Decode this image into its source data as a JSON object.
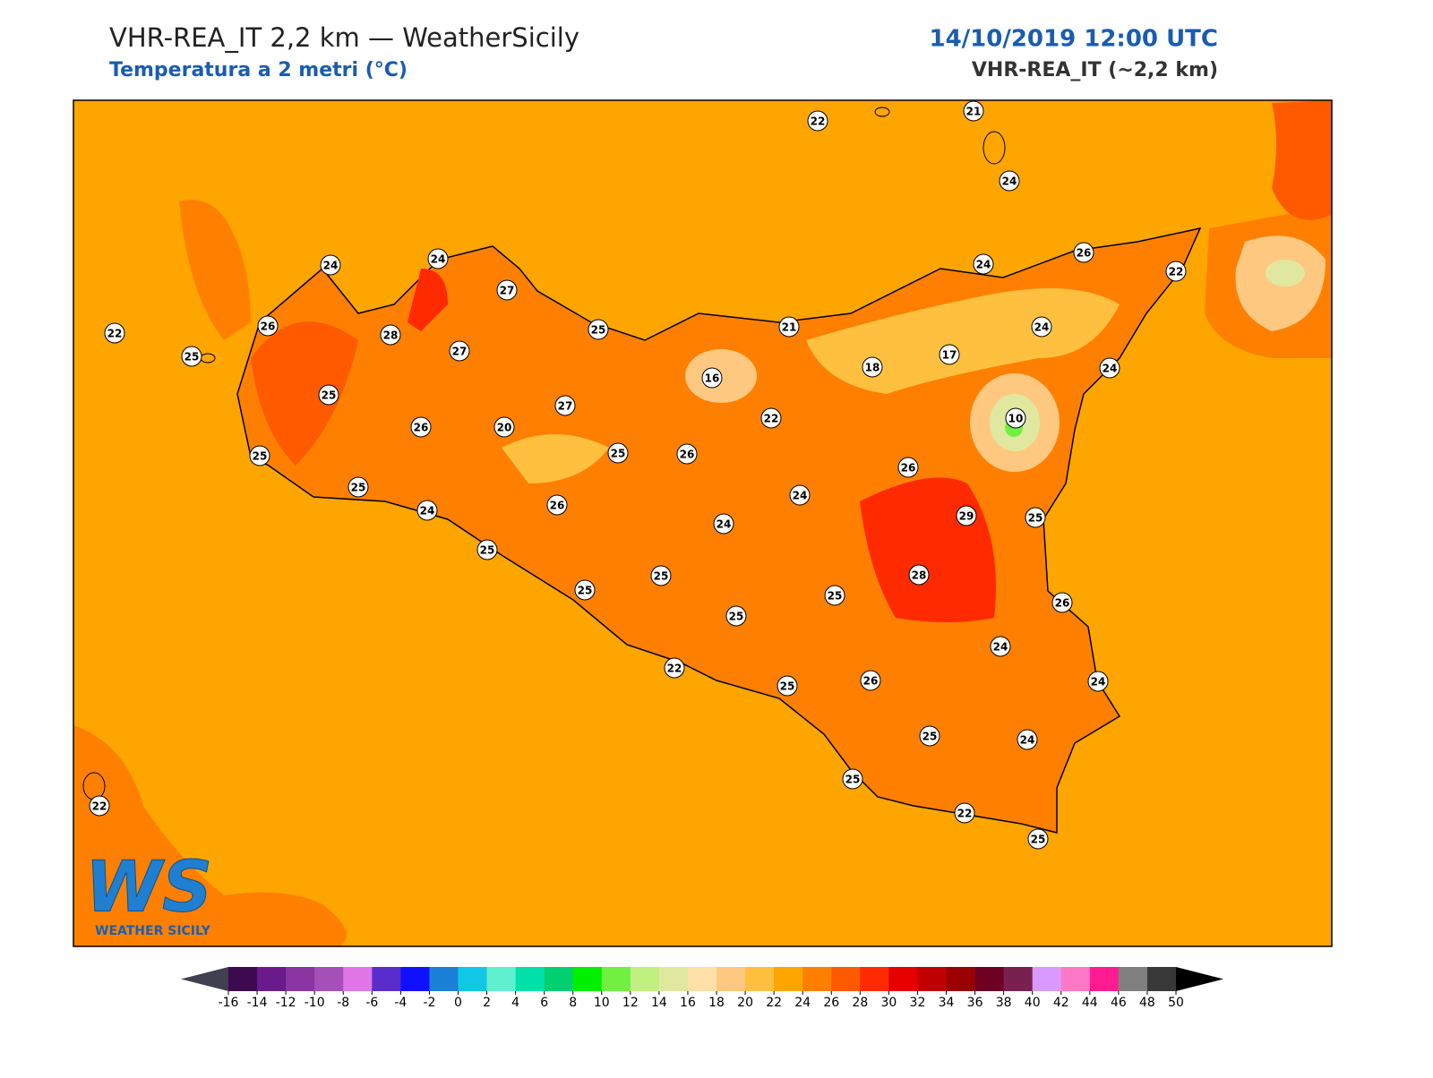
{
  "header": {
    "title": "VHR-REA_IT 2,2 km — WeatherSicily",
    "subtitle": "Temperatura a 2 metri (°C)",
    "datetime": "14/10/2019 12:00 UTC",
    "model": "VHR-REA_IT (~2,2 km)"
  },
  "stations": [
    22,
    21,
    24,
    24,
    24,
    27,
    26,
    28,
    22,
    25,
    25,
    27,
    16,
    21,
    25,
    27,
    26,
    20,
    22,
    18,
    17,
    24,
    26,
    22,
    24,
    24,
    10,
    25,
    25,
    25,
    26,
    26,
    24,
    24,
    26,
    24,
    29,
    25,
    25,
    25,
    25,
    28,
    25,
    25,
    26,
    24,
    22,
    25,
    26,
    24,
    25,
    24,
    25,
    22,
    25,
    22
  ],
  "logo": {
    "letters": "WS",
    "name": "WEATHER SICILY"
  },
  "colorbar": {
    "ticks": [
      -16,
      -14,
      -12,
      -10,
      -8,
      -6,
      -4,
      -2,
      0,
      2,
      4,
      6,
      8,
      10,
      12,
      14,
      16,
      18,
      20,
      22,
      24,
      26,
      28,
      30,
      32,
      34,
      36,
      38,
      40,
      42,
      44,
      46,
      48,
      50
    ],
    "colors": [
      "#3d0a4f",
      "#6b1a8c",
      "#8b35a3",
      "#a54fb9",
      "#e076e8",
      "#5a2ccb",
      "#1010ff",
      "#1a80d8",
      "#10c8e6",
      "#5ff0d0",
      "#00e0a8",
      "#00d070",
      "#00f000",
      "#70f040",
      "#c0f080",
      "#e0e8a0",
      "#ffe0a8",
      "#ffc880",
      "#ffc040",
      "#ffa500",
      "#ff8000",
      "#ff5a00",
      "#ff2a00",
      "#e60000",
      "#c00000",
      "#9a0000",
      "#6e0022",
      "#7a2050",
      "#d89aff",
      "#ff78c8",
      "#ff1c90",
      "#808080",
      "#383838"
    ],
    "extend_colors": [
      "#404050",
      "#000000"
    ]
  }
}
